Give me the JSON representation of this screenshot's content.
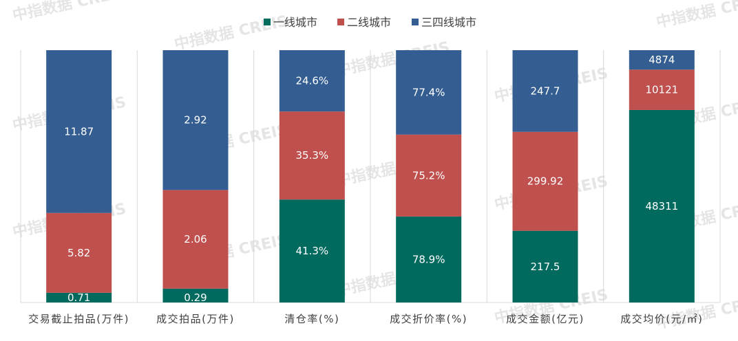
{
  "chart_data": {
    "type": "bar",
    "stacked": true,
    "normalized_to_100_percent": true,
    "categories": [
      "交易截止拍品(万件)",
      "成交拍品(万件)",
      "清仓率(%)",
      "成交折价率(%)",
      "成交金额(亿元)",
      "成交均价(元/㎡)"
    ],
    "series": [
      {
        "name": "一线城市",
        "color": "#006A5F",
        "values": [
          0.71,
          0.29,
          41.3,
          78.9,
          217.5,
          48311
        ],
        "labels": [
          "0.71",
          "0.29",
          "41.3%",
          "78.9%",
          "217.5",
          "48311"
        ]
      },
      {
        "name": "二线城市",
        "color": "#C0504D",
        "values": [
          5.82,
          2.06,
          35.3,
          75.2,
          299.92,
          10121
        ],
        "labels": [
          "5.82",
          "2.06",
          "35.3%",
          "75.2%",
          "299.92",
          "10121"
        ]
      },
      {
        "name": "三四线城市",
        "color": "#345E92",
        "values": [
          11.87,
          2.92,
          24.6,
          77.4,
          247.7,
          4874
        ],
        "labels": [
          "11.87",
          "2.92",
          "24.6%",
          "77.4%",
          "247.7",
          "4874"
        ]
      }
    ],
    "legend_position": "top",
    "grid": "vertical separators between categories"
  },
  "watermarks": [
    "中指数据",
    "CREIS"
  ]
}
